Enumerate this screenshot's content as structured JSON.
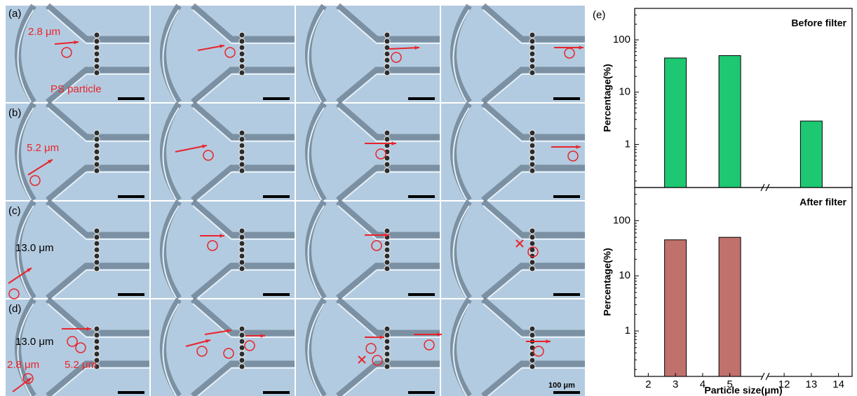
{
  "panels": {
    "labels": [
      "(a)",
      "(b)",
      "(c)",
      "(d)",
      "(e)"
    ],
    "a_size": "2.8 μm",
    "a_note": "PS particle",
    "b_size": "5.2 μm",
    "c_size": "13.0 μm",
    "d_large": "13.0 μm",
    "d_small": "2.8 μm",
    "d_medium": "5.2 μm",
    "scale_bar": "100 μm"
  },
  "chart_data": [
    {
      "type": "bar",
      "title": "Before filter",
      "ylabel": "Percentage(%)",
      "x": [
        3,
        5,
        13
      ],
      "values": [
        45,
        50,
        2.8
      ],
      "color": "#1ec873",
      "log_y": true,
      "ylim": [
        0.15,
        400
      ],
      "yticks": [
        1,
        10,
        100
      ],
      "xlim": [
        1.5,
        14.5
      ],
      "xbreak": [
        6.3,
        11.3
      ]
    },
    {
      "type": "bar",
      "title": "After filter",
      "ylabel": "Percentage(%)",
      "xlabel": "Particle size(μm)",
      "x": [
        3,
        5
      ],
      "values": [
        45,
        50
      ],
      "color": "#c0716c",
      "log_y": true,
      "ylim": [
        0.15,
        400
      ],
      "yticks": [
        1,
        10,
        100
      ],
      "xlim": [
        1.5,
        14.5
      ],
      "xbreak": [
        6.3,
        11.3
      ],
      "xticks": [
        2,
        3,
        4,
        5,
        12,
        13,
        14
      ]
    }
  ]
}
